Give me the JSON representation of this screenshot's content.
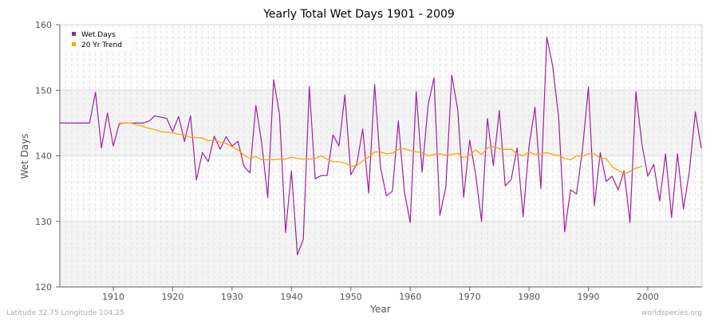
{
  "chart_data": {
    "type": "line",
    "title": "Yearly Total Wet Days 1901 - 2009",
    "xlabel": "Year",
    "ylabel": "Wet Days",
    "xlim": [
      1901,
      2009
    ],
    "ylim": [
      120,
      160
    ],
    "xticks": [
      1910,
      1920,
      1930,
      1940,
      1950,
      1960,
      1970,
      1980,
      1990,
      2000
    ],
    "yticks": [
      120,
      130,
      140,
      150,
      160
    ],
    "grid": true,
    "legend_position": "top-left",
    "series": [
      {
        "name": "Wet Days",
        "color": "#a020a0",
        "x": [
          1901,
          1902,
          1903,
          1904,
          1905,
          1906,
          1907,
          1908,
          1909,
          1910,
          1911,
          1912,
          1913,
          1914,
          1915,
          1916,
          1917,
          1918,
          1919,
          1920,
          1921,
          1922,
          1923,
          1924,
          1925,
          1926,
          1927,
          1928,
          1929,
          1930,
          1931,
          1932,
          1933,
          1934,
          1935,
          1936,
          1937,
          1938,
          1939,
          1940,
          1941,
          1942,
          1943,
          1944,
          1945,
          1946,
          1947,
          1948,
          1949,
          1950,
          1951,
          1952,
          1953,
          1954,
          1955,
          1956,
          1957,
          1958,
          1959,
          1960,
          1961,
          1962,
          1963,
          1964,
          1965,
          1966,
          1967,
          1968,
          1969,
          1970,
          1971,
          1972,
          1973,
          1974,
          1975,
          1976,
          1977,
          1978,
          1979,
          1980,
          1981,
          1982,
          1983,
          1984,
          1985,
          1986,
          1987,
          1988,
          1989,
          1990,
          1991,
          1992,
          1993,
          1994,
          1995,
          1996,
          1997,
          1998,
          1999,
          2000,
          2001,
          2002,
          2003,
          2004,
          2005,
          2006,
          2007,
          2008,
          2009
        ],
        "values": [
          145,
          145,
          145,
          145,
          145,
          145,
          149.7,
          141.2,
          146.5,
          141.5,
          144.9,
          145,
          145,
          145,
          145,
          145.3,
          146.1,
          145.9,
          145.7,
          143.7,
          146,
          142.2,
          146.1,
          136.3,
          140.5,
          139.1,
          143,
          141,
          142.9,
          141.5,
          142.2,
          138.4,
          137.4,
          147.7,
          141.9,
          133.6,
          151.6,
          146.3,
          128.3,
          137.7,
          124.9,
          127.3,
          150.6,
          136.5,
          137,
          137,
          143.2,
          141.5,
          149.3,
          137.1,
          138.8,
          144.1,
          134.3,
          150.9,
          138.2,
          133.9,
          134.6,
          145.3,
          134.6,
          129.8,
          149.8,
          137.5,
          147.7,
          151.9,
          130.9,
          135.3,
          152.3,
          147,
          133.7,
          142.4,
          137.3,
          130,
          145.7,
          138.5,
          146.9,
          135.4,
          136.4,
          141.2,
          130.7,
          141.5,
          147.4,
          135,
          158.1,
          153.6,
          145.8,
          128.4,
          134.8,
          134.2,
          140.9,
          150.5,
          132.4,
          140.5,
          136.1,
          136.9,
          134.8,
          137.7,
          129.8,
          149.8,
          141.8,
          136.9,
          138.7,
          133.1,
          140.3,
          130.6,
          140.3,
          131.9,
          137.6,
          146.7,
          141.2
        ]
      },
      {
        "name": "20 Yr Trend",
        "color": "#ffa500",
        "x": [
          1911,
          1912,
          1913,
          1914,
          1915,
          1916,
          1917,
          1918,
          1919,
          1920,
          1921,
          1922,
          1923,
          1924,
          1925,
          1926,
          1927,
          1928,
          1929,
          1930,
          1931,
          1932,
          1933,
          1934,
          1935,
          1936,
          1937,
          1938,
          1939,
          1940,
          1941,
          1942,
          1943,
          1944,
          1945,
          1946,
          1947,
          1948,
          1949,
          1950,
          1951,
          1952,
          1953,
          1954,
          1955,
          1956,
          1957,
          1958,
          1959,
          1960,
          1961,
          1962,
          1963,
          1964,
          1965,
          1966,
          1967,
          1968,
          1969,
          1970,
          1971,
          1972,
          1973,
          1974,
          1975,
          1976,
          1977,
          1978,
          1979,
          1980,
          1981,
          1982,
          1983,
          1984,
          1985,
          1986,
          1987,
          1988,
          1989,
          1990,
          1991,
          1992,
          1993,
          1994,
          1995,
          1996,
          1997,
          1998,
          1999
        ],
        "values": [
          145,
          145,
          145,
          144.7,
          144.5,
          144.2,
          144,
          143.7,
          143.6,
          143.5,
          143.3,
          143.2,
          142.8,
          142.8,
          142.7,
          142.3,
          142.4,
          142.1,
          141.9,
          141.4,
          140.9,
          140.1,
          139.6,
          139.9,
          139.4,
          139.4,
          139.4,
          139.5,
          139.5,
          139.8,
          139.6,
          139.5,
          139.5,
          139.6,
          140,
          139.5,
          139.1,
          139.1,
          138.9,
          138.4,
          138.5,
          139.2,
          139.8,
          140.6,
          140.6,
          140.3,
          140.4,
          141,
          141.1,
          140.8,
          140.6,
          140.5,
          140,
          140.2,
          140.3,
          140.1,
          140.2,
          140.4,
          139.7,
          140.1,
          140.9,
          140.2,
          141.2,
          141.4,
          141.1,
          141,
          141,
          140.3,
          140,
          140.6,
          140.2,
          140.3,
          140.5,
          140.2,
          140.1,
          139.6,
          139.4,
          140,
          139.9,
          140.3,
          140.3,
          139.6,
          139.6,
          138.3,
          137.8,
          137.3,
          137.6,
          138.1,
          138.4
        ]
      }
    ]
  },
  "footer": {
    "location": "Latitude 32.75 Longitude 104.25",
    "source": "worldspecies.org"
  }
}
